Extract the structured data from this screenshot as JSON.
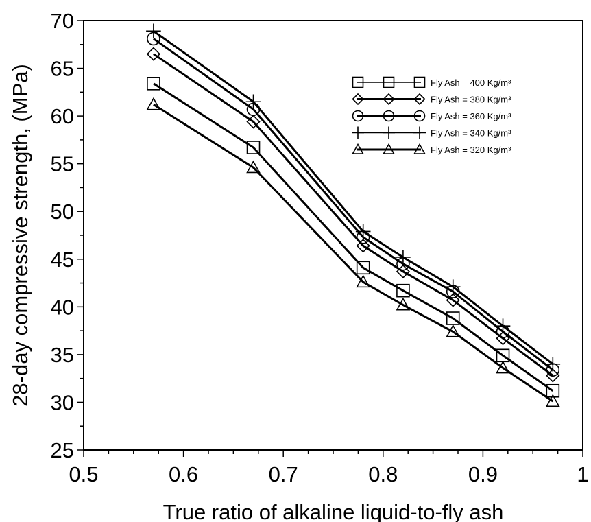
{
  "chart_data": {
    "type": "line",
    "title": "",
    "xlabel": "True ratio of alkaline liquid-to-fly ash",
    "ylabel": "28-day compressive strength, (MPa)",
    "xlim": [
      0.5,
      1.0
    ],
    "ylim": [
      25,
      70
    ],
    "xticks": [
      "0.5",
      "0.6",
      "0.7",
      "0.8",
      "0.9",
      "1"
    ],
    "yticks": [
      "25",
      "30",
      "35",
      "40",
      "45",
      "50",
      "55",
      "60",
      "65",
      "70"
    ],
    "grid": false,
    "legend_position": "top-right",
    "x": [
      0.57,
      0.67,
      0.78,
      0.82,
      0.87,
      0.92,
      0.97
    ],
    "series": [
      {
        "name": "Fly Ash = 400 Kg/m³",
        "marker": "square",
        "values": [
          63.4,
          56.7,
          44.1,
          41.7,
          38.8,
          34.9,
          31.2
        ]
      },
      {
        "name": "Fly Ash = 380 Kg/m³",
        "marker": "diamond",
        "values": [
          66.5,
          59.4,
          46.4,
          43.7,
          40.7,
          36.7,
          32.8
        ]
      },
      {
        "name": "Fly Ash = 360 Kg/m³",
        "marker": "circle",
        "values": [
          68.1,
          60.7,
          47.3,
          44.5,
          41.6,
          37.4,
          33.4
        ]
      },
      {
        "name": "Fly Ash = 340 Kg/m³",
        "marker": "plus",
        "values": [
          68.9,
          61.5,
          47.9,
          45.2,
          42.1,
          38.0,
          34.0
        ]
      },
      {
        "name": "Fly Ash = 320 Kg/m³",
        "marker": "triangle",
        "values": [
          61.2,
          54.6,
          42.6,
          40.2,
          37.4,
          33.6,
          30.1
        ]
      }
    ]
  }
}
